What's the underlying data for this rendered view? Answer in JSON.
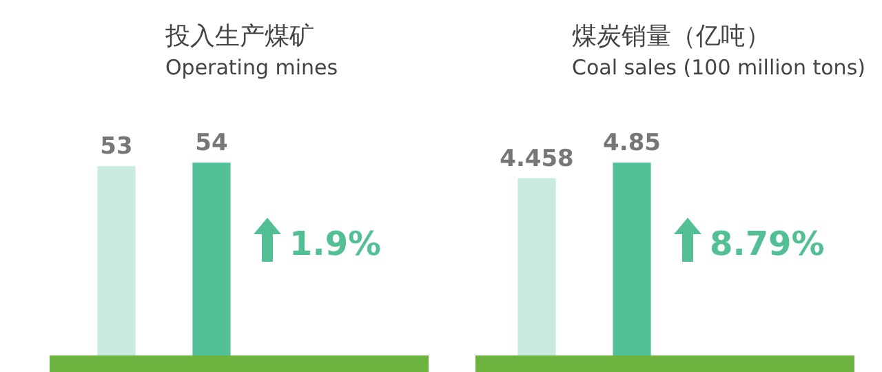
{
  "chart_data": [
    {
      "type": "bar",
      "title": "投入生产煤矿",
      "subtitle": "Operating mines",
      "categories": [
        null,
        null
      ],
      "values": [
        53,
        54
      ],
      "colors": [
        "#c8ebdd",
        "#52c198"
      ],
      "data_labels": true,
      "annotations": [
        "1.9%"
      ]
    },
    {
      "type": "bar",
      "title": "煤炭销量（亿吨）",
      "subtitle": "Coal sales (100 million tons)",
      "categories": [
        null,
        null
      ],
      "values": [
        4.458,
        4.85
      ],
      "colors": [
        "#c8ebdd",
        "#52c198"
      ],
      "data_labels": true,
      "annotations": [
        "8.79%"
      ]
    }
  ]
}
